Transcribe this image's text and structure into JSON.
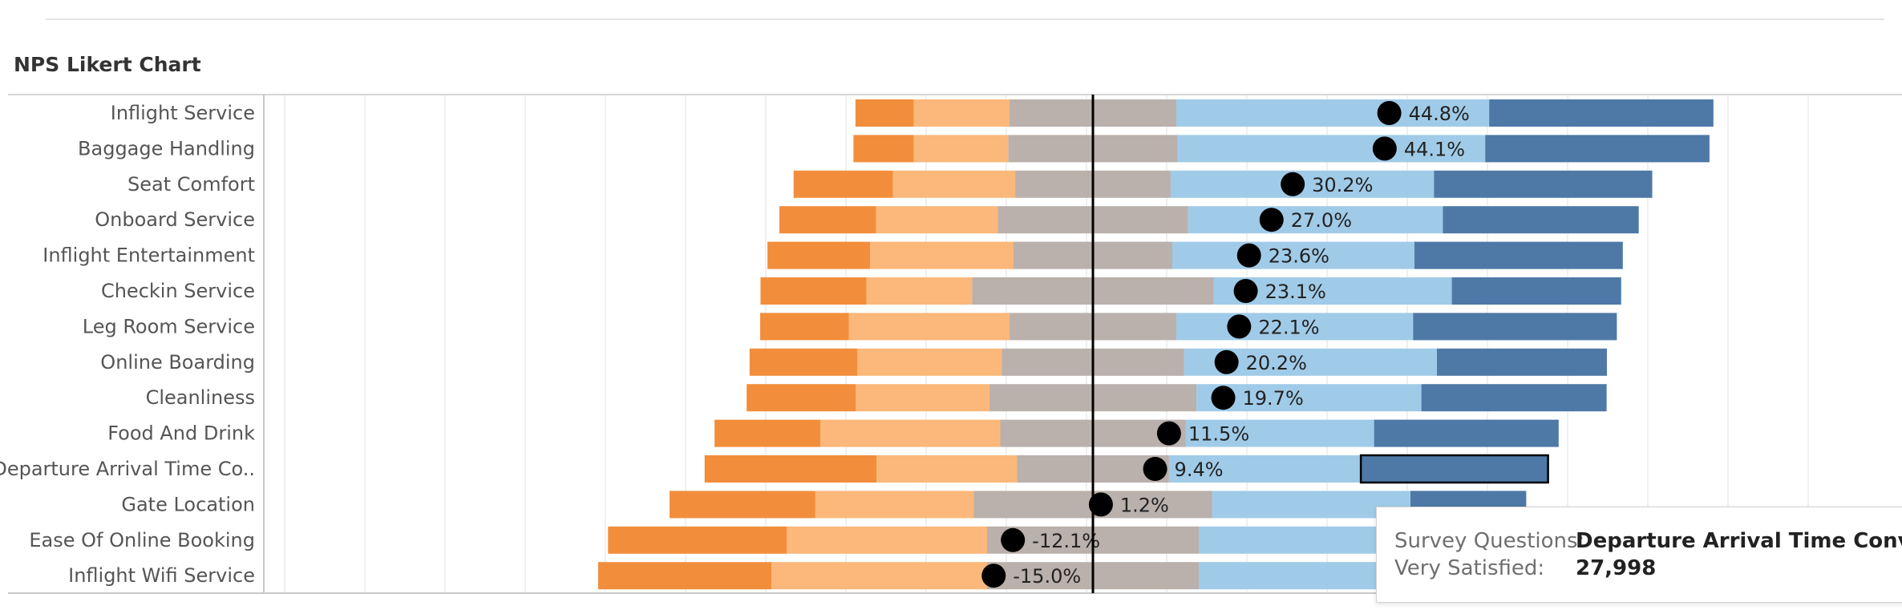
{
  "title": "NPS Likert Chart",
  "colors": {
    "very_dissatisfied": "#f28e3b",
    "dissatisfied": "#fbb87a",
    "neutral": "#bab0ac",
    "satisfied": "#a0cbe8",
    "very_satisfied": "#4e79a7",
    "marker": "#000000",
    "center_line": "#000000",
    "grid": "#ebebeb"
  },
  "chart_data": {
    "type": "bar",
    "stacked": "diverging",
    "title": "NPS Likert Chart",
    "categories": [
      "Inflight Service",
      "Baggage Handling",
      "Seat Comfort",
      "Onboard Service",
      "Inflight Entertainment",
      "Checkin Service",
      "Leg Room Service",
      "Online Boarding",
      "Cleanliness",
      "Food And Drink",
      "Departure Arrival Time Co..",
      "Gate Location",
      "Ease Of Online Booking",
      "Inflight Wifi Service"
    ],
    "segments": [
      {
        "key": "very_dissatisfied",
        "values": [
          8.8,
          9.1,
          15.0,
          14.6,
          15.5,
          16.0,
          13.4,
          16.3,
          16.5,
          16.0,
          26.0,
          22.0,
          27.0,
          26.2
        ]
      },
      {
        "key": "dissatisfied",
        "values": [
          14.5,
          14.3,
          18.5,
          18.4,
          21.7,
          16.0,
          24.3,
          21.8,
          20.2,
          27.2,
          21.2,
          24.0,
          30.3,
          32.6
        ]
      },
      {
        "key": "neutral",
        "values": [
          25.2,
          25.6,
          23.5,
          28.8,
          24.0,
          36.5,
          25.2,
          27.6,
          31.3,
          28.0,
          23.0,
          36.0,
          32.0,
          32.0
        ]
      },
      {
        "key": "satisfied",
        "values": [
          47.3,
          46.5,
          39.8,
          38.5,
          36.6,
          36.0,
          35.8,
          38.2,
          34.0,
          28.5,
          29.0,
          30.0,
          30.0,
          30.0
        ]
      },
      {
        "key": "very_satisfied",
        "values": [
          33.9,
          33.9,
          33.0,
          29.6,
          31.5,
          25.6,
          30.8,
          25.7,
          28.0,
          27.9,
          28.3,
          17.5,
          0,
          0
        ]
      }
    ],
    "nps_values": [
      44.8,
      44.1,
      30.2,
      27.0,
      23.6,
      23.1,
      22.1,
      20.2,
      19.7,
      11.5,
      9.4,
      1.2,
      -12.1,
      -15.0
    ],
    "nps_labels": [
      "44.8%",
      "44.1%",
      "30.2%",
      "27.0%",
      "23.6%",
      "23.1%",
      "22.1%",
      "20.2%",
      "19.7%",
      "11.5%",
      "9.4%",
      "1.2%",
      "-12.1%",
      "-15.0%"
    ],
    "highlighted_index": 10,
    "highlighted_segment": "very_satisfied",
    "xlim": [
      -100,
      100
    ]
  },
  "tooltip": {
    "rows": [
      {
        "key": "Survey Questions:",
        "value": "Departure Arrival Time Convenience"
      },
      {
        "key": "Very Satisfied:",
        "value": "27,998"
      }
    ]
  }
}
